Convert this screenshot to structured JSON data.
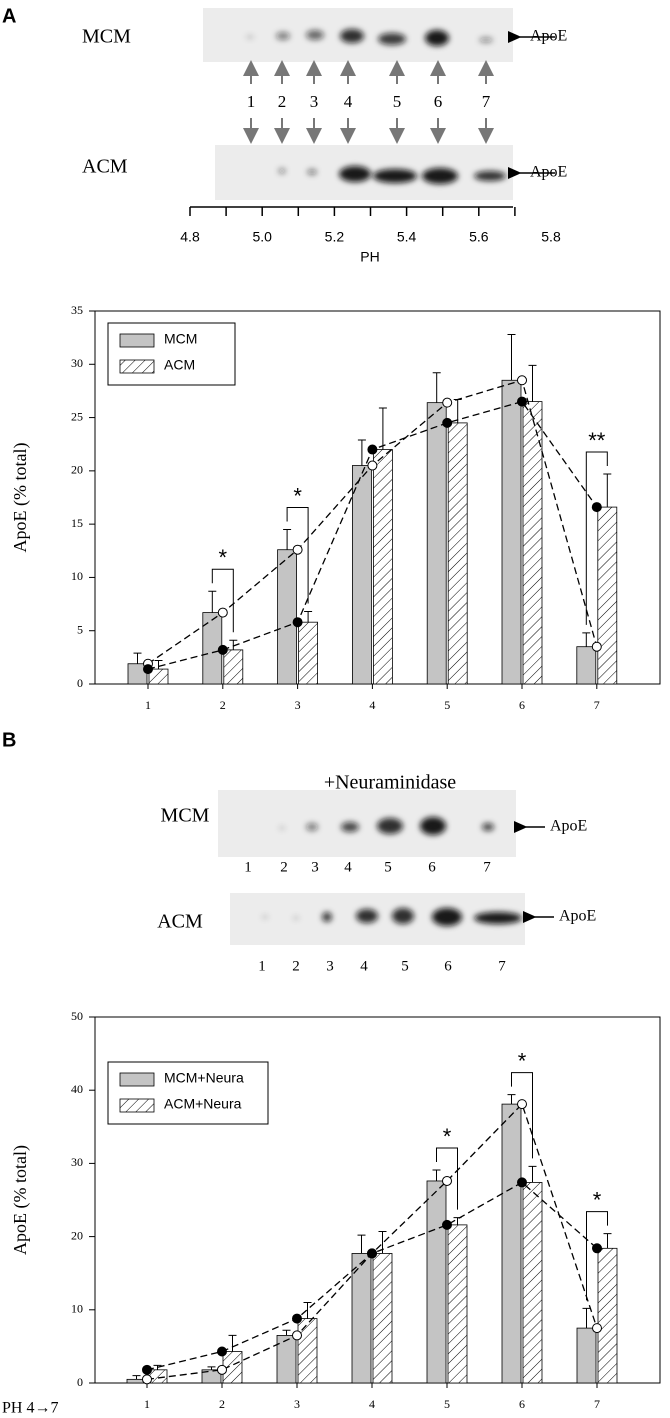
{
  "panel_a": {
    "letter": "A",
    "blots": [
      {
        "label": "MCM",
        "marker": "ApoE"
      },
      {
        "label": "ACM",
        "marker": "ApoE"
      }
    ],
    "lanes": [
      "1",
      "2",
      "3",
      "4",
      "5",
      "6",
      "7"
    ],
    "ph_axis": {
      "label": "PH",
      "xlim": [
        4.8,
        5.8
      ],
      "xticks": [
        4.8,
        {
          "value": 5,
          "label": "5.0"
        },
        5.2,
        5.4,
        5.6,
        5.8
      ],
      "minor_xticks": [
        4.9,
        5.1,
        5.3,
        5.5,
        5.7
      ]
    }
  },
  "panel_b": {
    "letter": "B",
    "treatment": "+Neuraminidase",
    "blots": [
      {
        "label": "MCM",
        "marker": "ApoE",
        "lanes": [
          "1",
          "2",
          "3",
          "4",
          "5",
          "6",
          "7"
        ]
      },
      {
        "label": "ACM",
        "marker": "ApoE",
        "lanes": [
          "1",
          "2",
          "3",
          "4",
          "5",
          "6",
          "7"
        ]
      }
    ]
  },
  "chart_data": [
    {
      "type": "bar",
      "y_label": "ApoE (% total)",
      "categories": [
        "1",
        "2",
        "3",
        "4",
        "5",
        "6",
        "7"
      ],
      "series": [
        {
          "name": "MCM",
          "color": "#c4c4c4",
          "marker": "open",
          "values": [
            1.9,
            6.7,
            12.6,
            20.5,
            26.4,
            28.5,
            3.5
          ],
          "errors": [
            1.0,
            2.0,
            1.9,
            2.4,
            2.8,
            4.3,
            1.3
          ]
        },
        {
          "name": "ACM",
          "color": "#ffffff",
          "hatch": true,
          "marker": "filled",
          "values": [
            1.4,
            3.2,
            5.8,
            22.0,
            24.5,
            26.5,
            16.6
          ],
          "errors": [
            0.8,
            0.9,
            1.0,
            3.9,
            2.2,
            3.4,
            3.1
          ]
        }
      ],
      "ylim": [
        0,
        35
      ],
      "yticks": [
        0,
        5,
        10,
        15,
        20,
        25,
        30,
        35
      ],
      "significance": [
        {
          "category": "2",
          "label": "*"
        },
        {
          "category": "3",
          "label": "*"
        },
        {
          "category": "7",
          "label": "**"
        }
      ]
    },
    {
      "type": "bar",
      "y_label": "ApoE (% total)",
      "x_label": "PH 4→7",
      "categories": [
        "1",
        "2",
        "3",
        "4",
        "5",
        "6",
        "7"
      ],
      "series": [
        {
          "name": "MCM+Neura",
          "color": "#c4c4c4",
          "marker": "open",
          "values": [
            0.5,
            1.8,
            6.5,
            17.7,
            27.6,
            38.1,
            7.5
          ],
          "errors": [
            0.5,
            0.4,
            0.7,
            2.5,
            1.5,
            1.3,
            2.7
          ]
        },
        {
          "name": "ACM+Neura",
          "color": "#ffffff",
          "hatch": true,
          "marker": "filled",
          "values": [
            1.8,
            4.3,
            8.8,
            17.7,
            21.6,
            27.4,
            18.4
          ],
          "errors": [
            0.6,
            2.2,
            2.2,
            3.0,
            1.0,
            2.2,
            2.0
          ]
        }
      ],
      "ylim": [
        0,
        50
      ],
      "yticks": [
        0,
        10,
        20,
        30,
        40,
        50
      ],
      "significance": [
        {
          "category": "5",
          "label": "*"
        },
        {
          "category": "6",
          "label": "*"
        },
        {
          "category": "7",
          "label": "*"
        }
      ]
    }
  ]
}
